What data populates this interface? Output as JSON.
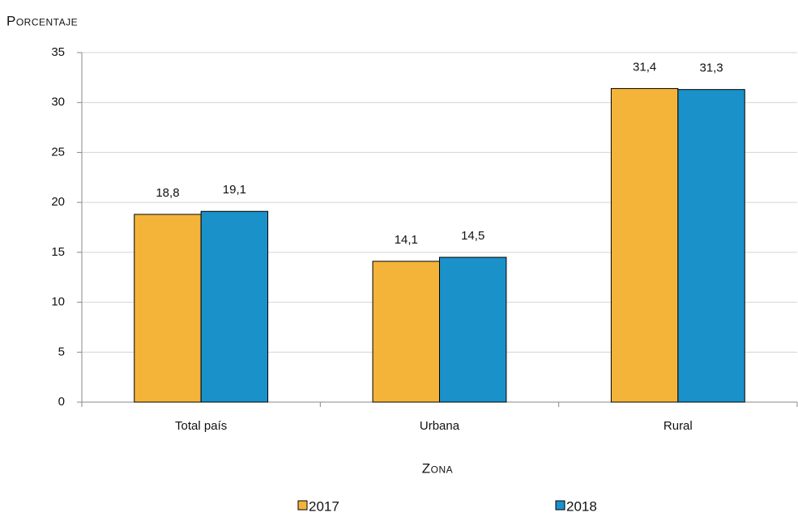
{
  "chart_data": {
    "type": "bar",
    "y_label": "Porcentaje",
    "x_label": "Zona",
    "categories": [
      "Total país",
      "Urbana",
      "Rural"
    ],
    "series": [
      {
        "name": "2017",
        "color": "#f4b43a",
        "values": [
          18.8,
          14.1,
          31.4
        ],
        "value_labels": [
          "18,8",
          "14,1",
          "31,4"
        ]
      },
      {
        "name": "2018",
        "color": "#1a91c9",
        "values": [
          19.1,
          14.5,
          31.3
        ],
        "value_labels": [
          "19,1",
          "14,5",
          "31,3"
        ]
      }
    ],
    "ylim": [
      0,
      35
    ],
    "yticks": [
      0,
      5,
      10,
      15,
      20,
      25,
      30,
      35
    ],
    "grid": true,
    "legend": "bottom"
  }
}
